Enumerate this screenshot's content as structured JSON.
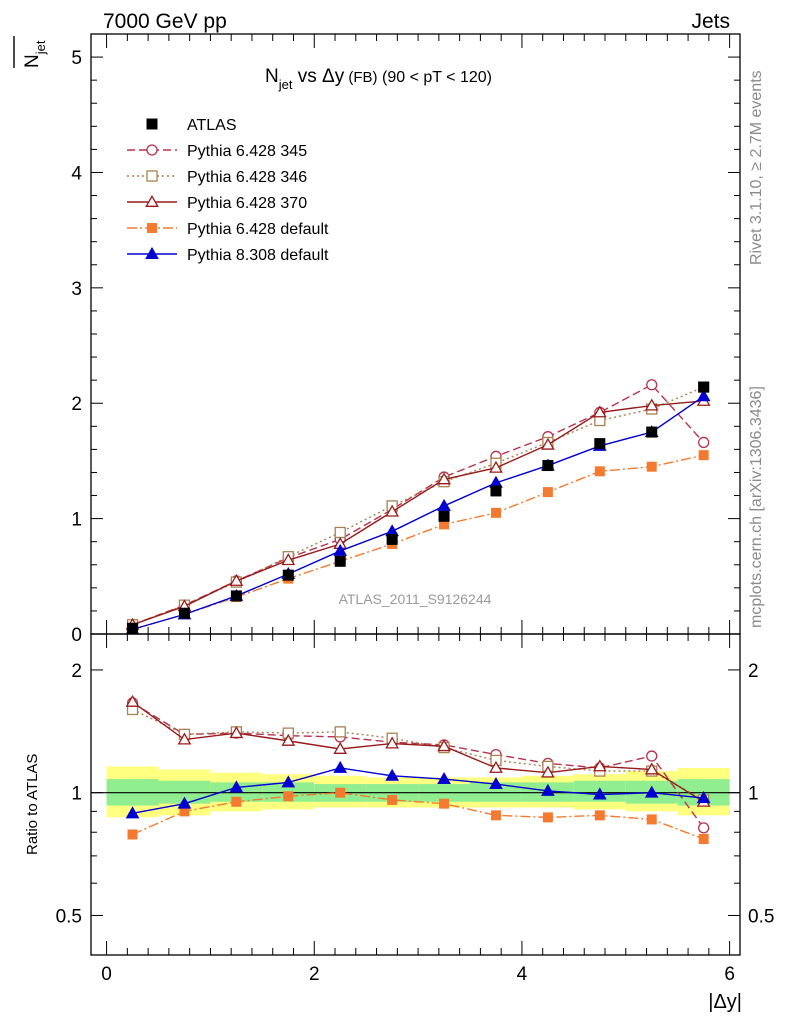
{
  "header": {
    "left": "7000 GeV pp",
    "right": "Jets"
  },
  "side_text": {
    "rivet": "Rivet 3.1.10, ≥ 2.7M events",
    "mcplots": "mcplots.cern.ch [arXiv:1306.3436]"
  },
  "chart_data": [
    {
      "type": "line",
      "title_main": "N",
      "title_sub": "jet",
      "title_rest": " vs Δy",
      "title_small": " (FB)",
      "title_tail": " (90 < pT < 120)",
      "ylabel_main": "N",
      "ylabel_sub": "jet",
      "watermark": "ATLAS_2011_S9126244",
      "xlim": [
        -0.15,
        6.1
      ],
      "ylim": [
        0,
        5.2
      ],
      "yticks": [
        0,
        1,
        2,
        3,
        4,
        5
      ],
      "ytick_labels": [
        "0",
        "1",
        "2",
        "3",
        "4",
        "5"
      ],
      "x": [
        0.25,
        0.75,
        1.25,
        1.75,
        2.25,
        2.75,
        3.25,
        3.75,
        4.25,
        4.75,
        5.25,
        5.75
      ],
      "series": [
        {
          "name": "ATLAS",
          "color": "#000000",
          "marker": "square-filled",
          "dash": "none",
          "values": [
            0.05,
            0.18,
            0.33,
            0.51,
            0.63,
            0.82,
            1.02,
            1.24,
            1.46,
            1.65,
            1.75,
            2.14
          ]
        },
        {
          "name": "Pythia 6.428 345",
          "color": "#b8324f",
          "marker": "circle-open",
          "dash": "8,4",
          "values": [
            0.08,
            0.25,
            0.46,
            0.66,
            0.82,
            1.08,
            1.36,
            1.54,
            1.71,
            1.92,
            2.16,
            1.66
          ]
        },
        {
          "name": "Pythia 6.428 346",
          "color": "#a7814f",
          "marker": "square-open",
          "dash": "2,3",
          "values": [
            0.08,
            0.25,
            0.45,
            0.67,
            0.88,
            1.11,
            1.32,
            1.48,
            1.66,
            1.85,
            1.95,
            2.14
          ]
        },
        {
          "name": "Pythia 6.428 370",
          "color": "#9a1a1a",
          "marker": "triangle-open",
          "dash": "none",
          "values": [
            0.08,
            0.24,
            0.46,
            0.64,
            0.78,
            1.06,
            1.34,
            1.44,
            1.64,
            1.92,
            1.98,
            2.02
          ]
        },
        {
          "name": "Pythia 6.428 default",
          "color": "#f47a30",
          "marker": "square-filled",
          "dash": "10,3,2,3",
          "values": [
            0.04,
            0.17,
            0.32,
            0.48,
            0.63,
            0.78,
            0.95,
            1.05,
            1.23,
            1.41,
            1.45,
            1.55
          ]
        },
        {
          "name": "Pythia 8.308 default",
          "color": "#0000d0",
          "marker": "triangle-filled",
          "dash": "none",
          "values": [
            0.04,
            0.17,
            0.33,
            0.52,
            0.72,
            0.89,
            1.11,
            1.31,
            1.46,
            1.63,
            1.75,
            2.06
          ]
        }
      ]
    },
    {
      "type": "line",
      "ylabel": "Ratio to ATLAS",
      "xlabel": "|Δy|",
      "xlim": [
        -0.15,
        6.1
      ],
      "ylim": [
        0.4,
        2.45
      ],
      "scale": "log",
      "yticks": [
        0.5,
        1,
        2
      ],
      "ytick_labels": [
        "0.5",
        "1",
        "2"
      ],
      "xticks": [
        0,
        2,
        4,
        6
      ],
      "xtick_labels": [
        "0",
        "2",
        "4",
        "6"
      ],
      "x": [
        0.25,
        0.75,
        1.25,
        1.75,
        2.25,
        2.75,
        3.25,
        3.75,
        4.25,
        4.75,
        5.25,
        5.75
      ],
      "bands": {
        "inner_color": "#90ee90",
        "outer_color": "#ffff80",
        "bins": [
          0,
          0.5,
          1,
          1.5,
          2,
          2.5,
          3,
          3.5,
          4,
          4.5,
          5,
          5.5,
          6
        ],
        "inner": [
          [
            0.93,
            1.08
          ],
          [
            0.94,
            1.07
          ],
          [
            0.95,
            1.06
          ],
          [
            0.95,
            1.06
          ],
          [
            0.95,
            1.05
          ],
          [
            0.95,
            1.05
          ],
          [
            0.95,
            1.05
          ],
          [
            0.95,
            1.06
          ],
          [
            0.95,
            1.06
          ],
          [
            0.95,
            1.07
          ],
          [
            0.94,
            1.07
          ],
          [
            0.93,
            1.08
          ]
        ],
        "outer": [
          [
            0.87,
            1.16
          ],
          [
            0.88,
            1.14
          ],
          [
            0.9,
            1.12
          ],
          [
            0.91,
            1.11
          ],
          [
            0.92,
            1.1
          ],
          [
            0.92,
            1.09
          ],
          [
            0.92,
            1.09
          ],
          [
            0.92,
            1.09
          ],
          [
            0.92,
            1.1
          ],
          [
            0.91,
            1.11
          ],
          [
            0.9,
            1.13
          ],
          [
            0.88,
            1.15
          ]
        ]
      },
      "series": [
        {
          "name": "Pythia 6.428 345",
          "color": "#b8324f",
          "marker": "circle-open",
          "dash": "8,4",
          "values": [
            1.66,
            1.39,
            1.4,
            1.38,
            1.37,
            1.33,
            1.31,
            1.24,
            1.18,
            1.15,
            1.23,
            0.82
          ]
        },
        {
          "name": "Pythia 6.428 346",
          "color": "#a7814f",
          "marker": "square-open",
          "dash": "2,3",
          "values": [
            1.6,
            1.39,
            1.41,
            1.4,
            1.41,
            1.36,
            1.29,
            1.2,
            1.16,
            1.13,
            1.13,
            0.96
          ]
        },
        {
          "name": "Pythia 6.428 370",
          "color": "#9a1a1a",
          "marker": "triangle-open",
          "dash": "none",
          "values": [
            1.67,
            1.35,
            1.4,
            1.34,
            1.28,
            1.32,
            1.3,
            1.15,
            1.12,
            1.16,
            1.14,
            0.95
          ]
        },
        {
          "name": "Pythia 6.428 default",
          "color": "#f47a30",
          "marker": "square-filled",
          "dash": "10,3,2,3",
          "values": [
            0.79,
            0.9,
            0.95,
            0.98,
            1.0,
            0.96,
            0.94,
            0.88,
            0.87,
            0.88,
            0.86,
            0.77
          ]
        },
        {
          "name": "Pythia 8.308 default",
          "color": "#0000d0",
          "marker": "triangle-filled",
          "dash": "none",
          "values": [
            0.89,
            0.94,
            1.03,
            1.06,
            1.15,
            1.1,
            1.08,
            1.05,
            1.01,
            0.99,
            1.0,
            0.97
          ]
        }
      ]
    }
  ]
}
